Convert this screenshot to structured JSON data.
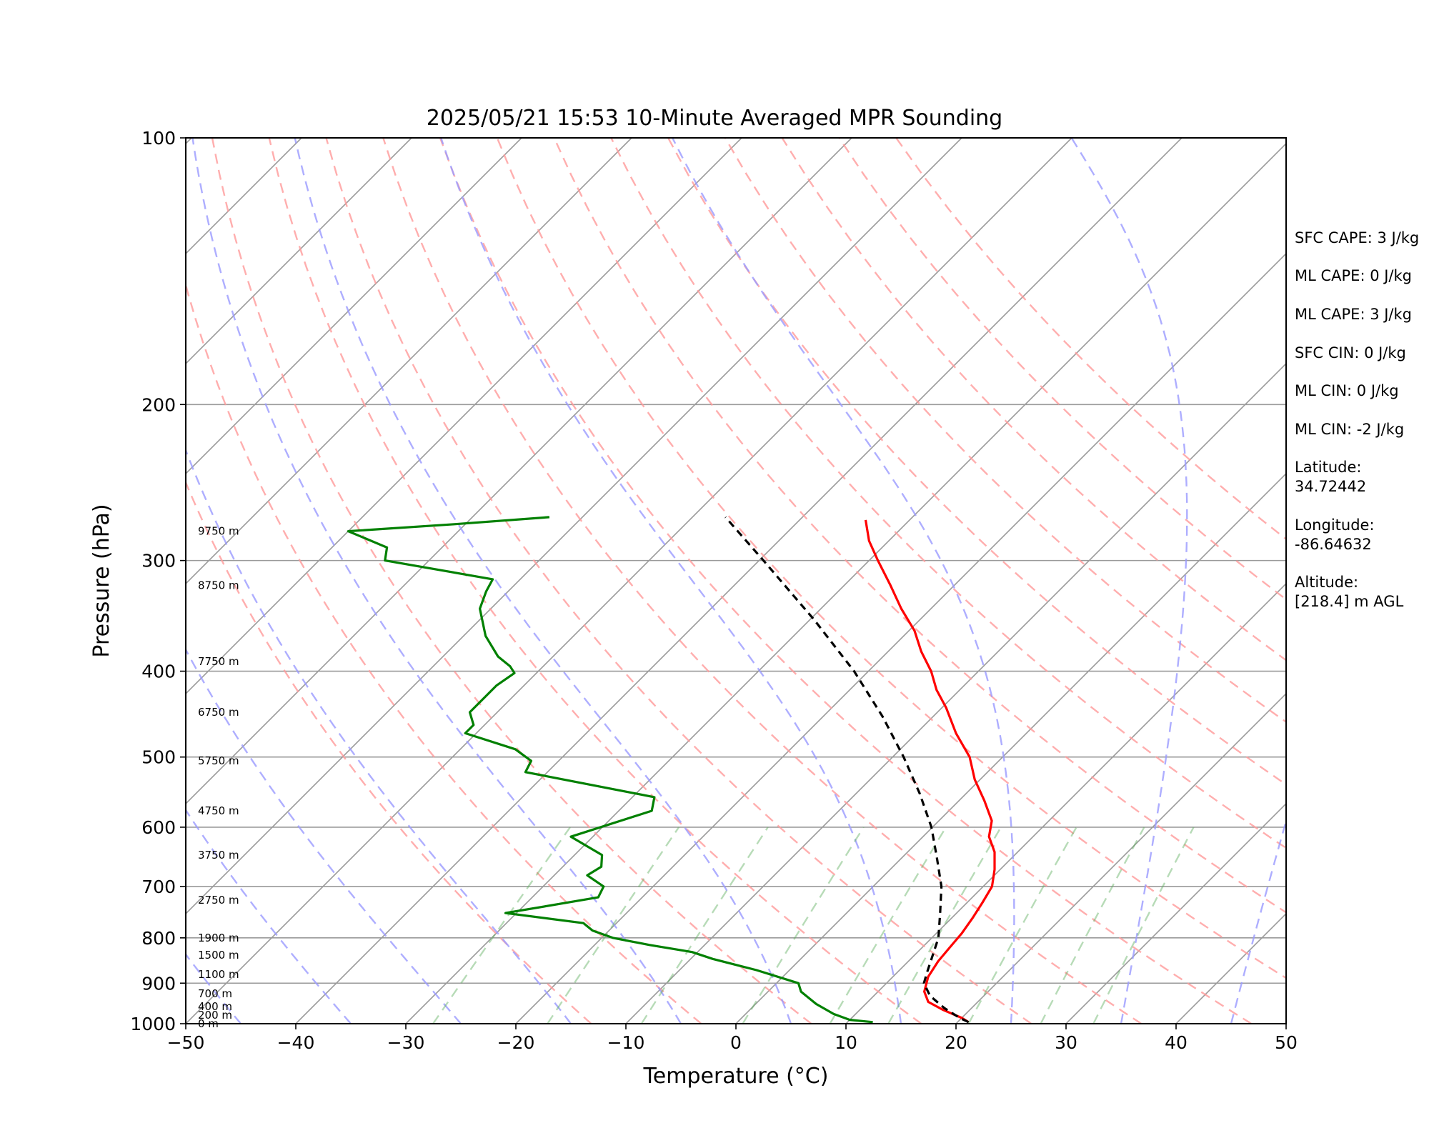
{
  "chart_data": {
    "type": "line",
    "title": "2025/05/21 15:53 10-Minute Averaged MPR Sounding",
    "xlabel": "Temperature (°C)",
    "ylabel": "Pressure (hPa)",
    "xlim": [
      -50,
      50
    ],
    "ylim": [
      1000,
      100
    ],
    "y_scale": "log",
    "skew": "skew-T log-p",
    "grid": true,
    "x_ticks": [
      -50,
      -40,
      -30,
      -20,
      -10,
      0,
      10,
      20,
      30,
      40,
      50
    ],
    "x_tick_labels": [
      "−50",
      "−40",
      "−30",
      "−20",
      "−10",
      "0",
      "10",
      "20",
      "30",
      "40",
      "50"
    ],
    "y_ticks": [
      1000,
      900,
      800,
      700,
      600,
      500,
      400,
      300,
      200,
      100
    ],
    "y_tick_labels": [
      "1000",
      "900",
      "800",
      "700",
      "600",
      "500",
      "400",
      "300",
      "200",
      "100"
    ],
    "series": [
      {
        "role": "temperature",
        "color": "#ff0000",
        "points": [
          [
            996,
            21.0
          ],
          [
            985,
            20.0
          ],
          [
            965,
            17.6
          ],
          [
            945,
            15.5
          ],
          [
            920,
            14.2
          ],
          [
            885,
            13.2
          ],
          [
            850,
            12.7
          ],
          [
            820,
            12.5
          ],
          [
            790,
            12.3
          ],
          [
            760,
            11.9
          ],
          [
            730,
            11.4
          ],
          [
            700,
            10.8
          ],
          [
            670,
            9.5
          ],
          [
            640,
            7.9
          ],
          [
            615,
            6.0
          ],
          [
            590,
            4.8
          ],
          [
            560,
            2.3
          ],
          [
            530,
            -0.5
          ],
          [
            500,
            -3.0
          ],
          [
            470,
            -6.4
          ],
          [
            440,
            -9.6
          ],
          [
            420,
            -12.1
          ],
          [
            400,
            -14.3
          ],
          [
            380,
            -17.0
          ],
          [
            360,
            -19.5
          ],
          [
            340,
            -22.7
          ],
          [
            320,
            -25.8
          ],
          [
            300,
            -29.2
          ],
          [
            285,
            -31.8
          ],
          [
            270,
            -34.0
          ]
        ]
      },
      {
        "role": "dewpoint",
        "color": "#008000",
        "points": [
          [
            996,
            12.3
          ],
          [
            990,
            10.0
          ],
          [
            975,
            8.0
          ],
          [
            950,
            5.5
          ],
          [
            920,
            3.0
          ],
          [
            900,
            2.0
          ],
          [
            870,
            -3.0
          ],
          [
            845,
            -8.0
          ],
          [
            830,
            -10.5
          ],
          [
            815,
            -15.0
          ],
          [
            800,
            -19.0
          ],
          [
            785,
            -21.5
          ],
          [
            770,
            -23.0
          ],
          [
            750,
            -31.0
          ],
          [
            720,
            -24.0
          ],
          [
            700,
            -24.5
          ],
          [
            680,
            -27.0
          ],
          [
            665,
            -26.5
          ],
          [
            645,
            -27.5
          ],
          [
            615,
            -32.0
          ],
          [
            575,
            -27.0
          ],
          [
            555,
            -28.0
          ],
          [
            520,
            -42.0
          ],
          [
            505,
            -42.5
          ],
          [
            490,
            -45.0
          ],
          [
            470,
            -51.0
          ],
          [
            460,
            -51.0
          ],
          [
            445,
            -52.5
          ],
          [
            430,
            -52.5
          ],
          [
            415,
            -52.5
          ],
          [
            402,
            -52.0
          ],
          [
            395,
            -53.0
          ],
          [
            385,
            -55.0
          ],
          [
            365,
            -58.0
          ],
          [
            340,
            -61.0
          ],
          [
            325,
            -62.0
          ],
          [
            315,
            -62.5
          ],
          [
            300,
            -74.0
          ],
          [
            290,
            -75.0
          ],
          [
            278,
            -80.0
          ],
          [
            273,
            -71.0
          ],
          [
            268,
            -63.0
          ]
        ]
      },
      {
        "role": "parcel",
        "color": "#000000",
        "style": "dashed",
        "points": [
          [
            996,
            21.0
          ],
          [
            985,
            19.8
          ],
          [
            960,
            17.5
          ],
          [
            930,
            15.1
          ],
          [
            900,
            13.4
          ],
          [
            875,
            12.7
          ],
          [
            860,
            12.3
          ],
          [
            800,
            10.6
          ],
          [
            750,
            8.5
          ],
          [
            700,
            6.2
          ],
          [
            650,
            3.2
          ],
          [
            600,
            -0.1
          ],
          [
            550,
            -4.2
          ],
          [
            500,
            -9.0
          ],
          [
            450,
            -14.6
          ],
          [
            400,
            -21.3
          ],
          [
            350,
            -29.6
          ],
          [
            300,
            -39.6
          ],
          [
            268,
            -47.0
          ]
        ]
      }
    ],
    "height_labels": [
      "0 m",
      "200 m",
      "400 m",
      "700 m",
      "1100 m",
      "1500 m",
      "1900 m",
      "2750 m",
      "3750 m",
      "4750 m",
      "5750 m",
      "6750 m",
      "7750 m",
      "8750 m",
      "9750 m"
    ],
    "height_label_pressures": [
      1000,
      978,
      956,
      925,
      880,
      837,
      800,
      725,
      645,
      575,
      505,
      445,
      390,
      320,
      278
    ],
    "reference_lines": {
      "isotherms_every_c": 10,
      "isotherm_color": "#9a9a9a",
      "dry_adiabat_thetas_k": [
        260,
        270,
        280,
        290,
        300,
        310,
        320,
        330,
        340,
        350,
        360,
        370,
        380,
        390,
        400
      ],
      "dry_adiabat_color": "#ff9a9a",
      "moist_adiabat_start_c": [
        -45,
        -35,
        -25,
        -15,
        -5,
        5,
        15,
        25,
        35,
        45,
        55
      ],
      "moist_adiabat_color": "#9a9aff",
      "mixing_ratios_gkg": [
        0.4,
        1,
        2,
        4,
        7,
        10,
        16,
        24,
        32
      ],
      "mixing_ratio_color": "#5fb05f"
    }
  },
  "sidebar": {
    "sfc_cape": "SFC CAPE: 3 J/kg",
    "ml_cape": "ML CAPE: 0 J/kg",
    "ml_cape_2": "ML CAPE: 3 J/kg",
    "sfc_cin": "SFC CIN: 0 J/kg",
    "ml_cin": "ML CIN: 0 J/kg",
    "ml_cin_2": "ML CIN: -2 J/kg",
    "latitude_label": "Latitude:",
    "latitude_value": "34.72442",
    "longitude_label": "Longitude:",
    "longitude_value": "-86.64632",
    "altitude_label": "Altitude:",
    "altitude_value": "[218.4] m AGL"
  }
}
